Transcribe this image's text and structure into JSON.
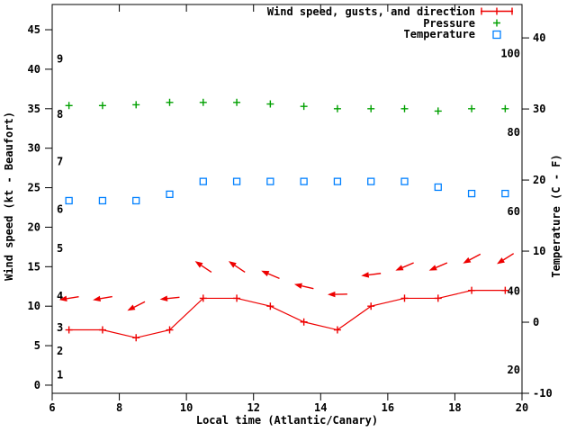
{
  "colors": {
    "wind": "#ee0000",
    "pressure": "#00a000",
    "temperature": "#0080ff",
    "axis": "#000000",
    "background": "#ffffff"
  },
  "legend": [
    {
      "label": "Wind speed, gusts, and direction",
      "sample": "line-plus",
      "color_key": "wind"
    },
    {
      "label": "Pressure",
      "sample": "plus",
      "color_key": "pressure"
    },
    {
      "label": "Temperature",
      "sample": "square",
      "color_key": "temperature"
    }
  ],
  "axes": {
    "x": {
      "label": "Local time (Atlantic/Canary)",
      "ticks": [
        6,
        8,
        10,
        12,
        14,
        16,
        18,
        20
      ]
    },
    "left": {
      "label": "Wind speed (kt - Beaufort)",
      "ticks": [
        0,
        5,
        10,
        15,
        20,
        25,
        30,
        35,
        40,
        45
      ],
      "beaufort_labels": [
        {
          "text": "1",
          "kt": 1
        },
        {
          "text": "2",
          "kt": 4
        },
        {
          "text": "3",
          "kt": 7
        },
        {
          "text": "4",
          "kt": 11
        },
        {
          "text": "5",
          "kt": 17
        },
        {
          "text": "6",
          "kt": 22
        },
        {
          "text": "7",
          "kt": 28
        },
        {
          "text": "8",
          "kt": 34
        },
        {
          "text": "9",
          "kt": 41
        }
      ]
    },
    "right": {
      "label": "Temperature (C - F)",
      "ticks": [
        -10,
        0,
        10,
        20,
        30,
        40
      ],
      "fahrenheit_labels": [
        {
          "text": "20",
          "c": -6.7
        },
        {
          "text": "40",
          "c": 4.4
        },
        {
          "text": "60",
          "c": 15.6
        },
        {
          "text": "80",
          "c": 26.7
        },
        {
          "text": "100",
          "c": 37.8
        }
      ]
    }
  },
  "chart_data": {
    "type": "line",
    "title": "",
    "xlabel": "Local time (Atlantic/Canary)",
    "ylabel_left": "Wind speed (kt - Beaufort)",
    "ylabel_right": "Temperature (C - F)",
    "x_range": [
      6,
      20
    ],
    "y_left_range_kt": [
      0,
      45
    ],
    "y_right_range_c": [
      -10,
      40
    ],
    "grid": false,
    "legend_position": "top-right",
    "x": [
      6.5,
      7.5,
      8.5,
      9.5,
      10.5,
      11.5,
      12.5,
      13.5,
      14.5,
      15.5,
      16.5,
      17.5,
      18.5,
      19.5
    ],
    "series": [
      {
        "name": "Wind speed (kt)",
        "marker": "plus-line",
        "color_key": "wind",
        "axis": "left",
        "values": [
          7,
          7,
          6,
          7,
          11,
          11,
          10,
          8,
          7,
          10,
          11,
          11,
          12,
          12
        ]
      },
      {
        "name": "Wind gusts and direction (kt, arrow points downwind)",
        "marker": "arrow",
        "color_key": "wind",
        "axis": "left",
        "values": [
          11,
          11,
          10,
          11,
          15,
          15,
          14,
          12.5,
          11.5,
          14,
          15,
          15,
          16,
          16
        ],
        "direction_deg": [
          189,
          190,
          207,
          186,
          146,
          146,
          157,
          167,
          181,
          187,
          203,
          203,
          208,
          212
        ]
      },
      {
        "name": "Pressure (numeric scale not shown; positions on left-axis units)",
        "marker": "plus",
        "color_key": "pressure",
        "axis": "left",
        "values": [
          35.4,
          35.4,
          35.5,
          35.8,
          35.8,
          35.8,
          35.6,
          35.3,
          35.0,
          35.0,
          35.0,
          34.7,
          35.0,
          35.0
        ]
      },
      {
        "name": "Temperature (C)",
        "marker": "square",
        "color_key": "temperature",
        "axis": "right",
        "values": [
          17.1,
          17.1,
          17.1,
          18.0,
          19.8,
          19.8,
          19.8,
          19.8,
          19.8,
          19.8,
          19.8,
          19.0,
          18.1,
          18.1
        ]
      }
    ]
  }
}
